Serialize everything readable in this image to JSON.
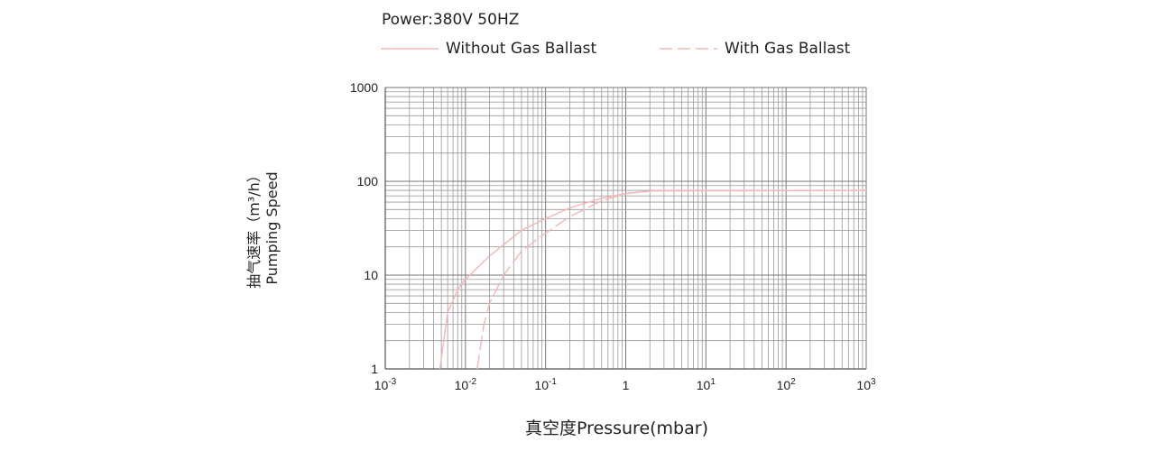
{
  "header": {
    "power": "Power:380V   50HZ"
  },
  "chart_data": {
    "type": "line",
    "title": "",
    "xlabel": "真空度Pressure(mbar)",
    "ylabel_lines": [
      "抽气速率（m³/h）",
      "Pumping Speed"
    ],
    "xscale": "log",
    "yscale": "log",
    "xlim": [
      0.001,
      1000
    ],
    "ylim": [
      1,
      1000
    ],
    "grid": true,
    "legend_position": "top",
    "x_tick_labels": [
      {
        "base": "10",
        "exp": "-3"
      },
      {
        "base": "10",
        "exp": "-2"
      },
      {
        "base": "10",
        "exp": "-1"
      },
      {
        "base": "1",
        "exp": ""
      },
      {
        "base": "10",
        "exp": "1"
      },
      {
        "base": "10",
        "exp": "2"
      },
      {
        "base": "10",
        "exp": "3"
      }
    ],
    "y_tick_labels": [
      "1",
      "10",
      "100",
      "1000"
    ],
    "series": [
      {
        "name": "Without Gas Ballast",
        "style": "solid",
        "color": "#f4b6b6",
        "x": [
          0.0048,
          0.006,
          0.008,
          0.01,
          0.02,
          0.05,
          0.1,
          0.2,
          0.5,
          1,
          2,
          1000
        ],
        "y": [
          1,
          4,
          7,
          9,
          16,
          30,
          40,
          52,
          66,
          74,
          79,
          80
        ]
      },
      {
        "name": "With Gas Ballast",
        "style": "dashed",
        "color": "#f4b6b6",
        "x": [
          0.014,
          0.017,
          0.02,
          0.03,
          0.05,
          0.1,
          0.2,
          0.5,
          1,
          2.5,
          1000
        ],
        "y": [
          1,
          3,
          5,
          10,
          18,
          28,
          42,
          62,
          74,
          80,
          80
        ]
      }
    ]
  }
}
